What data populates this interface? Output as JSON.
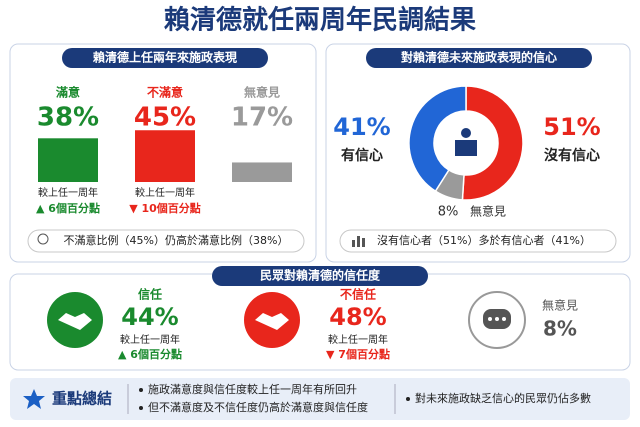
{
  "title": "賴清德就任兩周年民調結果",
  "performance": {
    "title": "賴清德上任兩年來施政表現",
    "items": [
      {
        "name": "滿意",
        "value": 38,
        "label": "38%",
        "color": "#1a8a2e"
      },
      {
        "name": "不滿意",
        "value": 45,
        "label": "45%",
        "color": "#e8261c"
      },
      {
        "name": "無意見",
        "value": 17,
        "label": "17%",
        "color": "#9a9a9a"
      }
    ],
    "changes": [
      {
        "caption": "較上任一周年",
        "text": "▲ 6個百分點",
        "color": "#1a8a2e"
      },
      {
        "caption": "較上任一周年",
        "text": "▼ 10個百分點",
        "color": "#e8261c"
      }
    ],
    "note": "不滿意比例（45%）仍高於滿意比例（38%）"
  },
  "confidence": {
    "title": "對賴清德未來施政表現的信心",
    "items": [
      {
        "name": "沒有信心",
        "value": 51,
        "label": "51%",
        "color": "#e8261c"
      },
      {
        "name": "無意見",
        "value": 8,
        "label": "8%",
        "color": "#9a9a9a"
      },
      {
        "name": "有信心",
        "value": 41,
        "label": "41%",
        "color": "#2166d6"
      }
    ],
    "note": "沒有信心者（51%）多於有信心者（41%）"
  },
  "trust": {
    "title": "民眾對賴清德的信任度",
    "items": [
      {
        "name": "信任",
        "label": "44%",
        "caption": "較上任一周年",
        "change": "▲ 6個百分點",
        "color": "#1a8a2e"
      },
      {
        "name": "不信任",
        "label": "48%",
        "caption": "較上任一周年",
        "change": "▼ 7個百分點",
        "color": "#e8261c"
      },
      {
        "name": "無意見",
        "label": "8%",
        "color": "#555555"
      }
    ]
  },
  "summary": {
    "title": "重點總結",
    "points": [
      "施政滿意度與信任度較上任一周年有所回升",
      "但不滿意度及不信任度仍高於滿意度與信任度",
      "對未來施政缺乏信心的民眾仍佔多數"
    ]
  }
}
